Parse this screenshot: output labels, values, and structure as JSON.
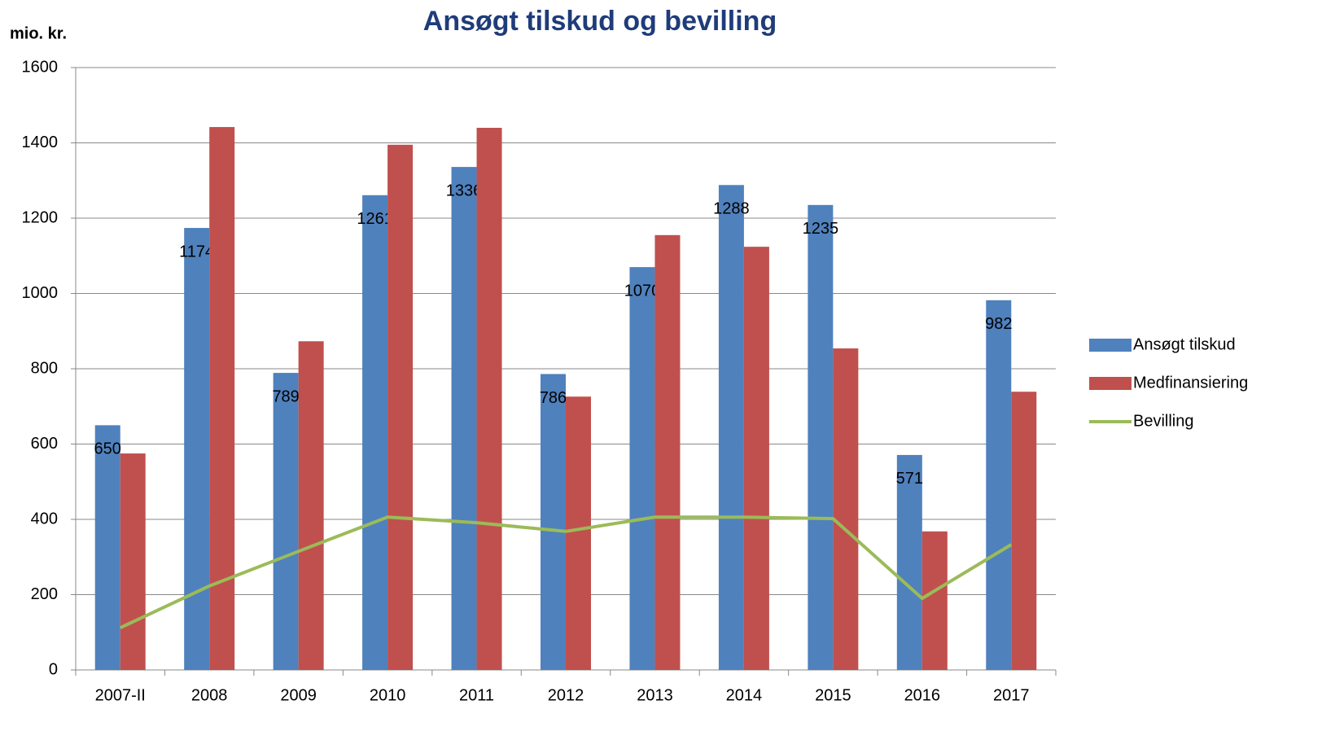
{
  "chart_data": {
    "type": "bar_line",
    "title": "Ansøgt tilskud og bevilling",
    "ylabel": "mio. kr.",
    "categories": [
      "2007-II",
      "2008",
      "2009",
      "2010",
      "2011",
      "2012",
      "2013",
      "2014",
      "2015",
      "2016",
      "2017"
    ],
    "series": [
      {
        "name": "Ansøgt tilskud",
        "type": "bar",
        "color": "#4f81bd",
        "values": [
          650,
          1174,
          789,
          1261,
          1336,
          786,
          1070,
          1288,
          1235,
          571,
          982
        ],
        "data_labels": true
      },
      {
        "name": "Medfinansiering",
        "type": "bar",
        "color": "#c0504d",
        "values": [
          575,
          1442,
          873,
          1395,
          1440,
          726,
          1155,
          1124,
          854,
          368,
          739
        ]
      },
      {
        "name": "Bevilling",
        "type": "line",
        "color": "#9bbb59",
        "values": [
          112,
          223,
          315,
          406,
          391,
          368,
          406,
          406,
          402,
          190,
          333
        ]
      }
    ],
    "ylim": [
      0,
      1600
    ],
    "yticks": [
      0,
      200,
      400,
      600,
      800,
      1000,
      1200,
      1400,
      1600
    ],
    "grid": true,
    "legend": "right"
  }
}
